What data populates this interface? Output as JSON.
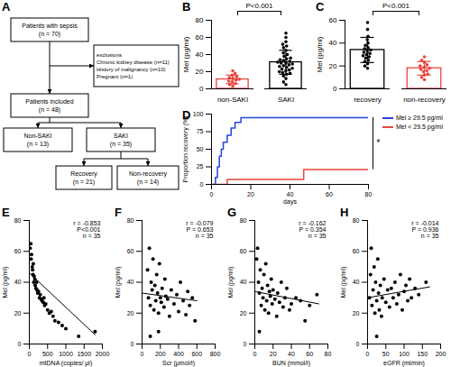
{
  "diagram": {
    "panel": "A",
    "nodes": [
      {
        "lines": [
          "Patients with sepsis",
          "(n = 70)"
        ]
      },
      {
        "lines": [
          "exclusions",
          "Chronic kidney disease (n=11)",
          "History of malignancy (n=10)",
          "Pregnant (n=1)"
        ]
      },
      {
        "lines": [
          "Patients included",
          "(n = 48)"
        ]
      },
      {
        "lines": [
          "Non-SAKI",
          "(n = 13)"
        ]
      },
      {
        "lines": [
          "SAKI",
          "(n = 35)"
        ]
      },
      {
        "lines": [
          "Recovery",
          "(n = 21)"
        ]
      },
      {
        "lines": [
          "Non-recovery",
          "(n = 14)"
        ]
      }
    ]
  },
  "chart_data": [
    {
      "panel": "B",
      "type": "dot_bar",
      "categories": [
        "non-SAKI",
        "SAKI"
      ],
      "colors": [
        "#e8453c",
        "#000000"
      ],
      "values": [
        [
          3,
          5,
          6,
          8,
          9,
          10,
          11,
          12,
          13,
          14,
          16,
          18,
          21
        ],
        [
          5,
          8,
          12,
          15,
          17,
          18,
          19,
          20,
          21,
          22,
          23,
          24,
          25,
          26,
          27,
          28,
          29,
          30,
          30,
          31,
          32,
          33,
          34,
          35,
          36,
          38,
          40,
          42,
          45,
          48,
          50,
          52,
          55,
          60,
          65
        ]
      ],
      "mean": [
        11,
        31
      ],
      "error": [
        5,
        14
      ],
      "ylabel": "Mel (pg/ml)",
      "ylim": [
        0,
        80
      ],
      "yticks": [
        0,
        20,
        40,
        60,
        80
      ],
      "annotations": [
        "P<0.001"
      ]
    },
    {
      "panel": "C",
      "type": "dot_bar",
      "categories": [
        "recovery",
        "non-recovery"
      ],
      "colors": [
        "#000000",
        "#e8453c"
      ],
      "values": [
        [
          18,
          20,
          22,
          24,
          25,
          27,
          28,
          29,
          30,
          31,
          32,
          33,
          34,
          35,
          36,
          38,
          40,
          43,
          46,
          52,
          58
        ],
        [
          8,
          10,
          12,
          13,
          15,
          16,
          17,
          18,
          19,
          20,
          21,
          23,
          25,
          28
        ]
      ],
      "mean": [
        34,
        18
      ],
      "error": [
        11,
        6
      ],
      "ylabel": "Mel (pg/ml)",
      "ylim": [
        0,
        60
      ],
      "yticks": [
        0,
        20,
        40,
        60
      ],
      "annotations": [
        "P<0.001"
      ]
    },
    {
      "panel": "D",
      "type": "step",
      "xlabel": "days",
      "ylabel": "Proportion recovery (%)",
      "xlim": [
        0,
        80
      ],
      "xticks": [
        0,
        20,
        40,
        60,
        80
      ],
      "ylim": [
        0,
        100
      ],
      "yticks": [
        0,
        25,
        50,
        75,
        100
      ],
      "legend": "right",
      "annotations": [
        "*"
      ],
      "series": [
        {
          "name": "Mel ≥ 29.5 pg/ml",
          "color": "#2145d8",
          "x": [
            0,
            2,
            3,
            4,
            5,
            6,
            8,
            10,
            12,
            15,
            80
          ],
          "values": [
            0,
            10,
            25,
            40,
            50,
            60,
            70,
            80,
            88,
            95,
            95
          ]
        },
        {
          "name": "Mel < 29.5 pg/ml",
          "color": "#e8453c",
          "x": [
            0,
            8,
            47,
            80
          ],
          "values": [
            0,
            7,
            21,
            21
          ]
        }
      ]
    },
    {
      "panel": "E",
      "type": "scatter",
      "xlabel": "mtDNA (copies/ μl)",
      "ylabel": "Mel (pg/ml)",
      "color": "#000000",
      "xlim": [
        0,
        2000
      ],
      "xticks": [
        0,
        500,
        1000,
        1500,
        2000
      ],
      "ylim": [
        0,
        80
      ],
      "yticks": [
        0,
        20,
        40,
        60,
        80
      ],
      "x": [
        20,
        40,
        50,
        60,
        80,
        90,
        100,
        110,
        120,
        130,
        150,
        160,
        180,
        200,
        210,
        230,
        250,
        280,
        300,
        320,
        350,
        380,
        400,
        420,
        450,
        500,
        550,
        600,
        650,
        700,
        800,
        900,
        1000,
        1350,
        1800
      ],
      "values": [
        62,
        65,
        55,
        58,
        50,
        48,
        45,
        52,
        40,
        44,
        42,
        38,
        36,
        40,
        35,
        33,
        34,
        30,
        32,
        29,
        28,
        27,
        30,
        25,
        26,
        22,
        20,
        21,
        18,
        15,
        14,
        12,
        10,
        5,
        8
      ],
      "fit": {
        "x": [
          0,
          1800
        ],
        "y": [
          46,
          6
        ]
      },
      "annotations": [
        "r = -0.853",
        "P<0.001",
        "n = 35"
      ]
    },
    {
      "panel": "F",
      "type": "scatter",
      "xlabel": "Scr (μmol/l)",
      "ylabel": "Mel (pg/ml)",
      "color": "#000000",
      "xlim": [
        0,
        800
      ],
      "xticks": [
        0,
        200,
        400,
        600,
        800
      ],
      "ylim": [
        0,
        80
      ],
      "yticks": [
        0,
        20,
        40,
        60,
        80
      ],
      "x": [
        60,
        70,
        80,
        90,
        100,
        110,
        120,
        130,
        140,
        150,
        160,
        170,
        180,
        190,
        200,
        210,
        220,
        240,
        250,
        260,
        280,
        300,
        320,
        350,
        380,
        400,
        420,
        450,
        480,
        500,
        520,
        550,
        580,
        180,
        90
      ],
      "values": [
        48,
        30,
        62,
        25,
        40,
        35,
        55,
        22,
        38,
        28,
        45,
        33,
        20,
        52,
        30,
        27,
        36,
        24,
        42,
        31,
        29,
        18,
        35,
        26,
        32,
        21,
        40,
        28,
        19,
        34,
        25,
        30,
        15,
        8,
        5
      ],
      "fit": {
        "x": [
          0,
          600
        ],
        "y": [
          33,
          28
        ]
      },
      "annotations": [
        "r = -0.079",
        "P = 0.653",
        "n = 35"
      ]
    },
    {
      "panel": "G",
      "type": "scatter",
      "xlabel": "BUN (mmol/l)",
      "ylabel": "Mel (pg/ml)",
      "color": "#000000",
      "xlim": [
        0,
        80
      ],
      "xticks": [
        0,
        20,
        40,
        60,
        80
      ],
      "ylim": [
        0,
        80
      ],
      "yticks": [
        0,
        20,
        40,
        60,
        80
      ],
      "x": [
        2,
        3,
        4,
        5,
        6,
        7,
        8,
        9,
        10,
        11,
        12,
        13,
        14,
        15,
        16,
        17,
        18,
        19,
        20,
        22,
        24,
        25,
        27,
        29,
        31,
        33,
        35,
        38,
        40,
        45,
        50,
        55,
        60,
        68,
        5
      ],
      "values": [
        55,
        62,
        40,
        33,
        48,
        25,
        36,
        30,
        45,
        22,
        52,
        28,
        38,
        20,
        34,
        31,
        42,
        26,
        35,
        29,
        18,
        33,
        27,
        40,
        24,
        30,
        36,
        22,
        26,
        30,
        28,
        15,
        25,
        32,
        8
      ],
      "fit": {
        "x": [
          0,
          70
        ],
        "y": [
          34,
          26
        ]
      },
      "annotations": [
        "r = -0.162",
        "P = 0.354",
        "n = 35"
      ]
    },
    {
      "panel": "H",
      "type": "scatter",
      "xlabel": "eGFR (ml/min)",
      "ylabel": "Mel (pg/ml)",
      "color": "#000000",
      "xlim": [
        0,
        200
      ],
      "xticks": [
        0,
        50,
        100,
        150,
        200
      ],
      "ylim": [
        0,
        80
      ],
      "yticks": [
        0,
        20,
        40,
        60,
        80
      ],
      "x": [
        5,
        8,
        10,
        12,
        15,
        18,
        20,
        22,
        25,
        28,
        30,
        32,
        35,
        38,
        40,
        45,
        50,
        55,
        60,
        65,
        70,
        75,
        80,
        85,
        90,
        95,
        100,
        105,
        110,
        115,
        120,
        130,
        140,
        160,
        25
      ],
      "values": [
        30,
        45,
        62,
        25,
        35,
        50,
        20,
        40,
        28,
        55,
        33,
        22,
        38,
        18,
        30,
        42,
        27,
        35,
        24,
        36,
        30,
        40,
        26,
        32,
        45,
        22,
        34,
        38,
        28,
        42,
        30,
        36,
        32,
        40,
        5
      ],
      "fit": {
        "x": [
          0,
          170
        ],
        "y": [
          30,
          37
        ]
      },
      "annotations": [
        "r = -0.014",
        "P = 0.936",
        "n = 35"
      ]
    }
  ]
}
